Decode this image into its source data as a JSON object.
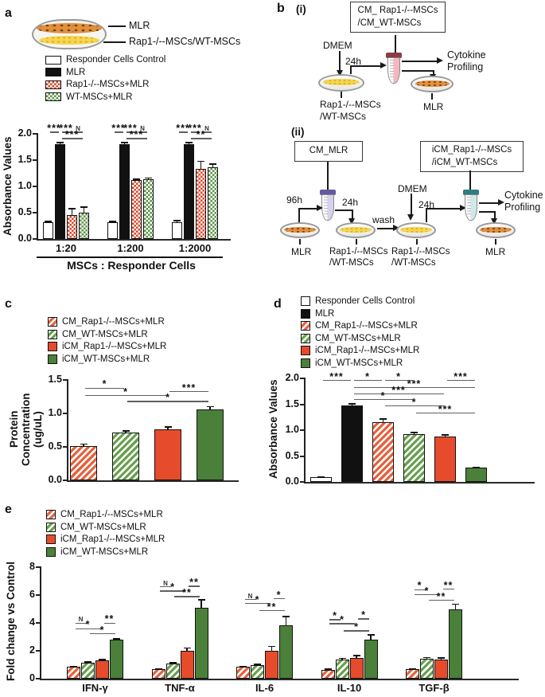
{
  "colors": {
    "red_solid": "#e64b2c",
    "green_solid": "#4a8039",
    "red_hatch": "#e6613c",
    "green_hatch": "#68a04f",
    "red_check": "#d8472b",
    "green_check": "#5e9349",
    "bar_black": "#111111",
    "dish_yellow": "#f6d54f",
    "dish_yellow_dot": "#d9b02a",
    "dish_orange": "#e2903c",
    "dish_orange_dot": "#7a3c10",
    "tube_i_cap": "#8b3d44",
    "tube_i_liquid": "#f3b8bd",
    "tube_ii1_cap": "#655a9e",
    "tube_ii1_liquid": "#d7d1ec",
    "tube_ii2_cap": "#2e7d80",
    "tube_ii2_liquid": "#cfe9e9"
  },
  "panels": {
    "a": {
      "label": "a",
      "diagram": {
        "mlr": "MLR",
        "msc": "Rap1-/--MSCs/WT-MSCs"
      }
    },
    "b": {
      "label": "b",
      "i": {
        "label": "(i)",
        "box": "CM_ Rap1-/--MSCs\n/CM_WT-MSCs",
        "dmem": "DMEM",
        "t24": "24h",
        "dish": "Rap1-/--MSCs\n/WT-MSCs",
        "mlr": "MLR",
        "cytokine": "Cytokine\nProfiling"
      },
      "ii": {
        "label": "(ii)",
        "box_cm": "CM_MLR",
        "box_icm": "iCM_Rap1-/--MSCs\n/iCM_WT-MSCs",
        "t96": "96h",
        "t24a": "24h",
        "wash": "wash",
        "dmem": "DMEM",
        "t24b": "24h",
        "mlr_left": "MLR",
        "mlr_right": "MLR",
        "dish2": "Rap1-/--MSCs\n/WT-MSCs",
        "dish3": "Rap1-/--MSCs\n/WT-MSCs",
        "cytokine": "Cytokine\nProfiling"
      }
    },
    "c": {
      "label": "c"
    },
    "d": {
      "label": "d"
    },
    "e": {
      "label": "e"
    }
  },
  "chart_data": [
    {
      "id": "a",
      "type": "bar",
      "title": "",
      "ylabel": "Absorbance Values",
      "xlabel": "MSCs : Responder Cells",
      "ylim": [
        0,
        2.0
      ],
      "yticks": [
        "0.0",
        "0.5",
        "1.0",
        "1.5",
        "2.0"
      ],
      "categories": [
        "1:20",
        "1:200",
        "1:2000"
      ],
      "series": [
        {
          "name": "Responder Cells Control",
          "style": "white",
          "values": [
            0.32,
            0.32,
            0.32
          ],
          "errors": [
            0.03,
            0.03,
            0.04
          ]
        },
        {
          "name": "MLR",
          "style": "black",
          "values": [
            1.8,
            1.8,
            1.8
          ],
          "errors": [
            0.05,
            0.05,
            0.05
          ]
        },
        {
          "name": "Rap1-/--MSCs+MLR",
          "style": "red-check",
          "values": [
            0.46,
            1.12,
            1.33
          ],
          "errors": [
            0.13,
            0.03,
            0.16
          ]
        },
        {
          "name": "WT-MSCs+MLR",
          "style": "green-check",
          "values": [
            0.5,
            1.14,
            1.36
          ],
          "errors": [
            0.12,
            0.03,
            0.08
          ]
        }
      ],
      "significance": [
        {
          "g": 0,
          "a": 0,
          "b": 1,
          "y": 2.02,
          "label": "***"
        },
        {
          "g": 0,
          "a": 1,
          "b": 2,
          "y": 2.02,
          "label": "***"
        },
        {
          "g": 0,
          "a": 2,
          "b": 3,
          "y": 2.02,
          "label": "N"
        },
        {
          "g": 0,
          "a": 1,
          "b": 3,
          "y": 1.9,
          "label": "***"
        },
        {
          "g": 1,
          "a": 0,
          "b": 1,
          "y": 2.02,
          "label": "***"
        },
        {
          "g": 1,
          "a": 1,
          "b": 2,
          "y": 2.02,
          "label": "***"
        },
        {
          "g": 1,
          "a": 2,
          "b": 3,
          "y": 2.02,
          "label": "N"
        },
        {
          "g": 1,
          "a": 1,
          "b": 3,
          "y": 1.9,
          "label": "***"
        },
        {
          "g": 2,
          "a": 0,
          "b": 1,
          "y": 2.02,
          "label": "***"
        },
        {
          "g": 2,
          "a": 1,
          "b": 2,
          "y": 2.02,
          "label": "***"
        },
        {
          "g": 2,
          "a": 2,
          "b": 3,
          "y": 2.02,
          "label": "N"
        },
        {
          "g": 2,
          "a": 1,
          "b": 3,
          "y": 1.9,
          "label": "**"
        }
      ]
    },
    {
      "id": "c",
      "type": "bar",
      "title": "",
      "ylabel": "Protein Concentration\n(ug/uL)",
      "xlabel": "",
      "ylim": [
        0,
        1.5
      ],
      "yticks": [
        "0.0",
        "0.5",
        "1.0",
        "1.5"
      ],
      "categories": [
        ""
      ],
      "series": [
        {
          "name": "CM_Rap1-/--MSCs+MLR",
          "style": "red-hatch",
          "values": [
            0.51
          ],
          "errors": [
            0.04
          ]
        },
        {
          "name": "CM_WT-MSCs+MLR",
          "style": "green-hatch",
          "values": [
            0.71
          ],
          "errors": [
            0.04
          ]
        },
        {
          "name": "iCM_Rap1-/--MSCs+MLR",
          "style": "red-solid",
          "values": [
            0.76
          ],
          "errors": [
            0.05
          ]
        },
        {
          "name": "iCM_WT-MSCs+MLR",
          "style": "green-solid",
          "values": [
            1.06
          ],
          "errors": [
            0.05
          ]
        }
      ],
      "significance": [
        {
          "g": 0,
          "a": 0,
          "b": 1,
          "y": 1.37,
          "label": "*"
        },
        {
          "g": 0,
          "a": 0,
          "b": 2,
          "y": 1.26,
          "label": "*"
        },
        {
          "g": 0,
          "a": 1,
          "b": 3,
          "y": 1.17,
          "label": "*"
        },
        {
          "g": 0,
          "a": 2,
          "b": 3,
          "y": 1.32,
          "label": "***"
        }
      ]
    },
    {
      "id": "d",
      "type": "bar",
      "title": "",
      "ylabel": "Absorbance Values",
      "xlabel": "",
      "ylim": [
        0,
        2.0
      ],
      "yticks": [
        "0.0",
        "0.5",
        "1.0",
        "1.5",
        "2.0"
      ],
      "categories": [
        ""
      ],
      "series": [
        {
          "name": "Responder Cells Control",
          "style": "white",
          "values": [
            0.1
          ],
          "errors": [
            0.01
          ]
        },
        {
          "name": "MLR",
          "style": "black",
          "values": [
            1.48
          ],
          "errors": [
            0.04
          ]
        },
        {
          "name": "CM_Rap1-/--MSCs+MLR",
          "style": "red-hatch",
          "values": [
            1.16
          ],
          "errors": [
            0.07
          ]
        },
        {
          "name": "CM_WT-MSCs+MLR",
          "style": "green-hatch",
          "values": [
            0.92
          ],
          "errors": [
            0.05
          ]
        },
        {
          "name": "iCM_Rap1-/--MSCs+MLR",
          "style": "red-solid",
          "values": [
            0.87
          ],
          "errors": [
            0.05
          ]
        },
        {
          "name": "iCM_WT-MSCs+MLR",
          "style": "green-solid",
          "values": [
            0.28
          ],
          "errors": [
            0.01
          ]
        }
      ],
      "significance": [
        {
          "g": 0,
          "a": 0,
          "b": 1,
          "y": 1.95,
          "label": "***"
        },
        {
          "g": 0,
          "a": 1,
          "b": 2,
          "y": 1.95,
          "label": "*"
        },
        {
          "g": 0,
          "a": 2,
          "b": 3,
          "y": 1.95,
          "label": "*"
        },
        {
          "g": 0,
          "a": 4,
          "b": 5,
          "y": 1.95,
          "label": "***"
        },
        {
          "g": 0,
          "a": 1,
          "b": 5,
          "y": 1.81,
          "label": "***"
        },
        {
          "g": 0,
          "a": 1,
          "b": 4,
          "y": 1.69,
          "label": "***"
        },
        {
          "g": 0,
          "a": 1,
          "b": 3,
          "y": 1.58,
          "label": "*"
        },
        {
          "g": 0,
          "a": 2,
          "b": 4,
          "y": 1.46,
          "label": "*"
        },
        {
          "g": 0,
          "a": 3,
          "b": 5,
          "y": 1.32,
          "label": "***"
        }
      ]
    },
    {
      "id": "e",
      "type": "bar",
      "title": "",
      "ylabel": "Fold change vs Control",
      "xlabel": "",
      "ylim": [
        0,
        8
      ],
      "yticks": [
        "0",
        "2",
        "4",
        "6",
        "8"
      ],
      "categories": [
        "IFN-γ",
        "TNF-α",
        "IL-6",
        "IL-10",
        "TGF-β"
      ],
      "series": [
        {
          "name": "CM_Rap1-/--MSCs+MLR",
          "style": "red-hatch",
          "values": [
            0.85,
            0.7,
            0.85,
            0.65,
            0.7
          ],
          "errors": [
            0.05,
            0.07,
            0.05,
            0.08,
            0.07
          ]
        },
        {
          "name": "CM_WT-MSCs+MLR",
          "style": "green-hatch",
          "values": [
            1.15,
            1.1,
            1.0,
            1.35,
            1.45
          ],
          "errors": [
            0.1,
            0.1,
            0.08,
            0.15,
            0.12
          ]
        },
        {
          "name": "iCM_Rap1-/--MSCs+MLR",
          "style": "red-solid",
          "values": [
            1.3,
            2.0,
            2.0,
            1.5,
            1.4
          ],
          "errors": [
            0.12,
            0.25,
            0.35,
            0.2,
            0.12
          ]
        },
        {
          "name": "iCM_WT-MSCs+MLR",
          "style": "green-solid",
          "values": [
            2.8,
            5.1,
            3.85,
            2.8,
            4.95
          ],
          "errors": [
            0.1,
            0.6,
            0.65,
            0.4,
            0.45
          ]
        }
      ],
      "significance": [
        {
          "g": 0,
          "a": 0,
          "b": 1,
          "y": 3.95,
          "label": "N"
        },
        {
          "g": 0,
          "a": 0,
          "b": 2,
          "y": 3.55,
          "label": "*"
        },
        {
          "g": 0,
          "a": 2,
          "b": 3,
          "y": 3.95,
          "label": "**"
        },
        {
          "g": 0,
          "a": 1,
          "b": 3,
          "y": 3.2,
          "label": "*"
        },
        {
          "g": 1,
          "a": 0,
          "b": 1,
          "y": 6.55,
          "label": "N"
        },
        {
          "g": 1,
          "a": 0,
          "b": 2,
          "y": 6.25,
          "label": "*"
        },
        {
          "g": 1,
          "a": 2,
          "b": 3,
          "y": 6.6,
          "label": "**"
        },
        {
          "g": 1,
          "a": 1,
          "b": 3,
          "y": 5.85,
          "label": "**"
        },
        {
          "g": 2,
          "a": 0,
          "b": 1,
          "y": 5.65,
          "label": "N"
        },
        {
          "g": 2,
          "a": 0,
          "b": 2,
          "y": 5.35,
          "label": "*"
        },
        {
          "g": 2,
          "a": 2,
          "b": 3,
          "y": 5.7,
          "label": "*"
        },
        {
          "g": 2,
          "a": 1,
          "b": 3,
          "y": 4.85,
          "label": "**"
        },
        {
          "g": 3,
          "a": 0,
          "b": 1,
          "y": 4.2,
          "label": "*"
        },
        {
          "g": 3,
          "a": 0,
          "b": 2,
          "y": 3.9,
          "label": "*"
        },
        {
          "g": 3,
          "a": 2,
          "b": 3,
          "y": 4.25,
          "label": "*"
        },
        {
          "g": 3,
          "a": 1,
          "b": 3,
          "y": 3.4,
          "label": "*"
        },
        {
          "g": 4,
          "a": 0,
          "b": 1,
          "y": 6.35,
          "label": "*"
        },
        {
          "g": 4,
          "a": 0,
          "b": 2,
          "y": 6.0,
          "label": "*"
        },
        {
          "g": 4,
          "a": 2,
          "b": 3,
          "y": 6.4,
          "label": "**"
        },
        {
          "g": 4,
          "a": 1,
          "b": 3,
          "y": 5.6,
          "label": "**"
        }
      ]
    }
  ]
}
